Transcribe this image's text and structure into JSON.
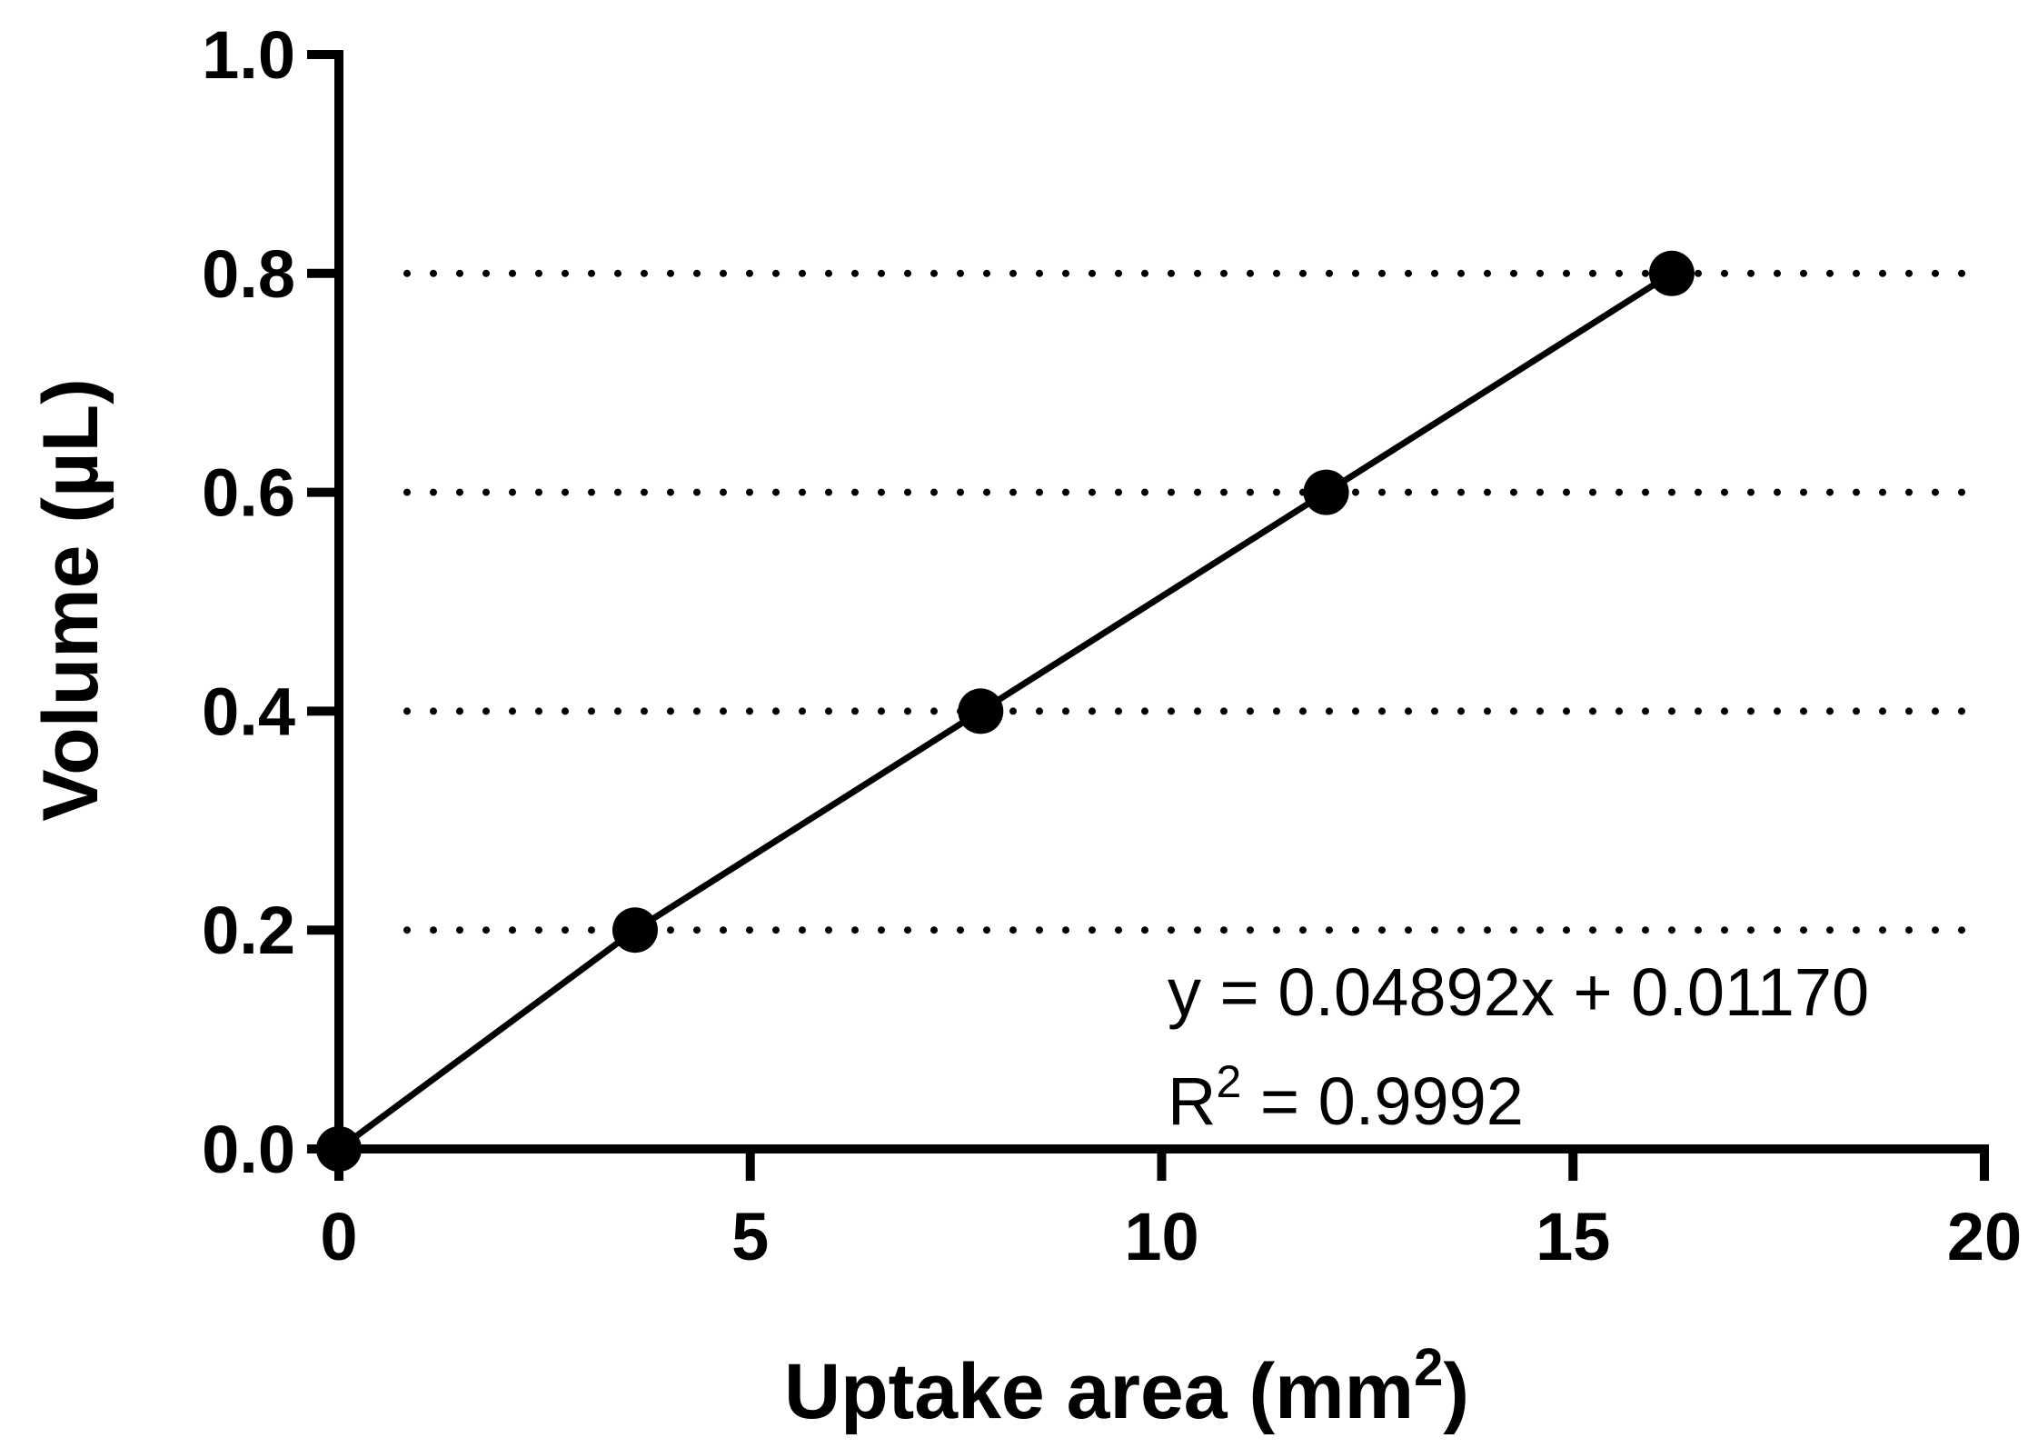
{
  "chart_data": {
    "type": "scatter",
    "title": "",
    "xlabel": "Uptake area (mm",
    "xlabel_sup": "2",
    "xlabel_end": ")",
    "ylabel": "Volume (µL)",
    "xlim": [
      0,
      20
    ],
    "ylim": [
      0,
      1.0
    ],
    "x_ticks": [
      0,
      5,
      10,
      15,
      20
    ],
    "x_tick_labels": [
      "0",
      "5",
      "10",
      "15",
      "20"
    ],
    "y_ticks": [
      0.0,
      0.2,
      0.4,
      0.6,
      0.8,
      1.0
    ],
    "y_tick_labels": [
      "0.0",
      "0.2",
      "0.4",
      "0.6",
      "0.8",
      "1.0"
    ],
    "gridlines_y": [
      0.2,
      0.4,
      0.6,
      0.8
    ],
    "grid_style": "dotted horizontal",
    "series": [
      {
        "x": [
          0,
          3.6,
          7.8,
          12.0,
          16.2
        ],
        "y": [
          0.0,
          0.2,
          0.4,
          0.6,
          0.8
        ],
        "color": "#000000",
        "marker": "circle",
        "line": "connected"
      }
    ],
    "annotations": {
      "equation": "y = 0.04892x + 0.01170",
      "r2_prefix": "R",
      "r2_sup": "2",
      "r2_value": " = 0.9992"
    }
  }
}
